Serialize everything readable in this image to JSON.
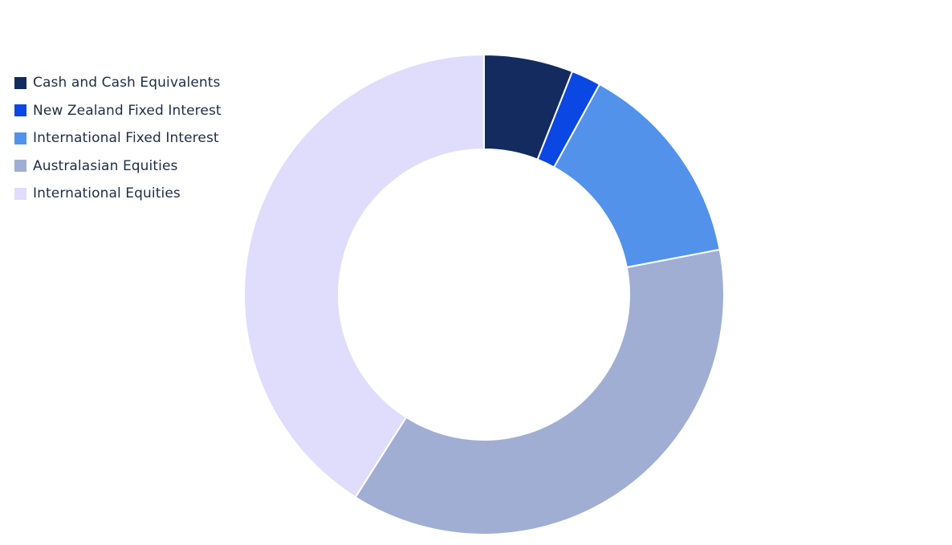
{
  "chart_data": {
    "type": "pie",
    "variant": "donut",
    "legend_position": "top-left",
    "categories": [
      "Cash and Cash Equivalents",
      "New Zealand Fixed Interest",
      "International Fixed Interest",
      "Australasian Equities",
      "International Equities"
    ],
    "values": [
      6,
      2,
      14,
      37,
      41
    ],
    "colors": [
      "#132b5f",
      "#0b47e2",
      "#5292ea",
      "#a0aed4",
      "#e0dcfb"
    ]
  }
}
